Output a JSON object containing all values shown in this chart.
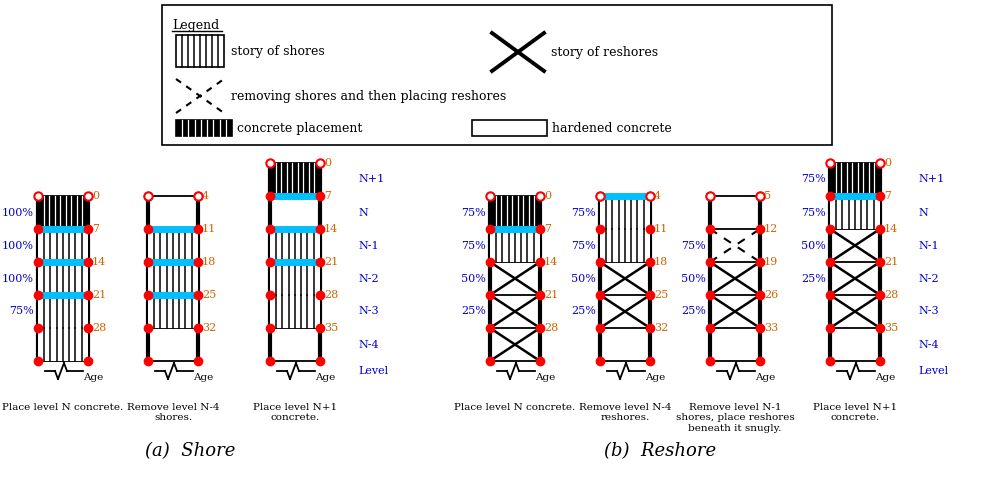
{
  "title_a": "(a)  Shore",
  "title_b": "(b)  Reshore",
  "caption_a1": "Place level N concrete.",
  "caption_a2": "Remove level N-4\nshores.",
  "caption_a3": "Place level N+1\nconcrete.",
  "caption_b1": "Place level N concrete.",
  "caption_b2": "Remove level N-4\nreshores.",
  "caption_b3": "Remove level N-1\nshores, place reshores\nbeneath it snugly.",
  "caption_b4": "Place level N+1\nconcrete.",
  "cyan_bar_color": "#00BFFF",
  "red_dot_color": "red",
  "pct_color": "#0000CC",
  "age_color": "#CC6600",
  "level_color": "#0000CC",
  "fig_w": 10.04,
  "fig_h": 4.91,
  "fig_dpi": 100
}
